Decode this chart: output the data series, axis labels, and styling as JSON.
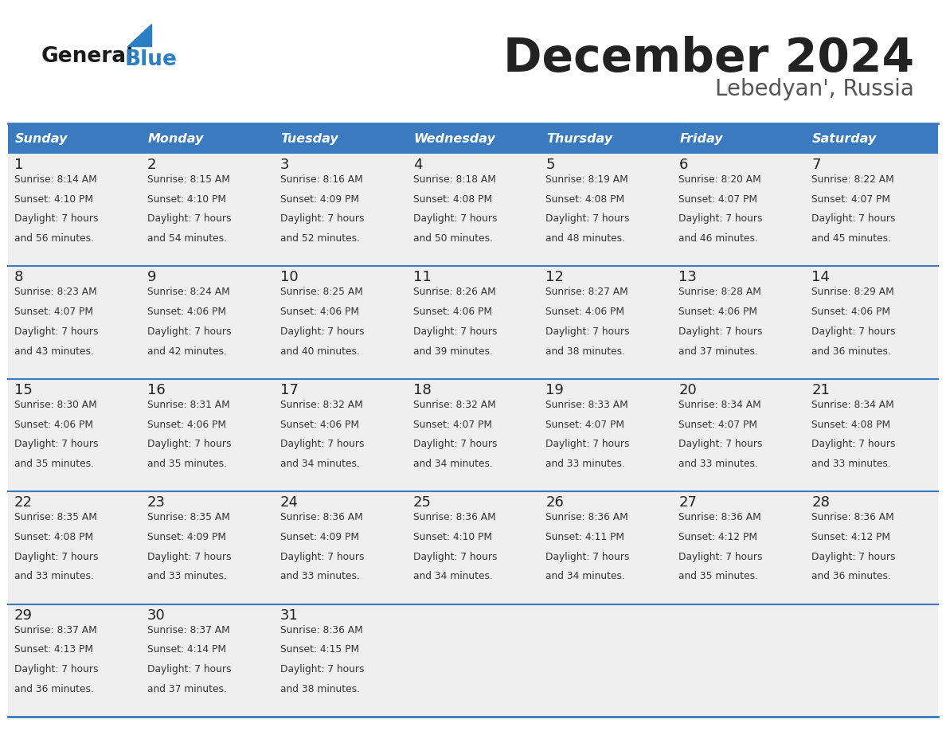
{
  "title": "December 2024",
  "subtitle": "Lebedyan', Russia",
  "header_color": "#3a7abf",
  "header_text_color": "#ffffff",
  "day_names": [
    "Sunday",
    "Monday",
    "Tuesday",
    "Wednesday",
    "Thursday",
    "Friday",
    "Saturday"
  ],
  "cell_bg_color": "#efefef",
  "title_color": "#222222",
  "subtitle_color": "#555555",
  "day_num_color": "#222222",
  "info_color": "#333333",
  "separator_color": "#3a7abf",
  "border_color": "#bbbbbb",
  "logo_color1": "#1a1a1a",
  "logo_color2": "#2b7fc3",
  "calendar": [
    [
      {
        "day": 1,
        "sunrise": "8:14 AM",
        "sunset": "4:10 PM",
        "daylight": "7 hours and 56 minutes."
      },
      {
        "day": 2,
        "sunrise": "8:15 AM",
        "sunset": "4:10 PM",
        "daylight": "7 hours and 54 minutes."
      },
      {
        "day": 3,
        "sunrise": "8:16 AM",
        "sunset": "4:09 PM",
        "daylight": "7 hours and 52 minutes."
      },
      {
        "day": 4,
        "sunrise": "8:18 AM",
        "sunset": "4:08 PM",
        "daylight": "7 hours and 50 minutes."
      },
      {
        "day": 5,
        "sunrise": "8:19 AM",
        "sunset": "4:08 PM",
        "daylight": "7 hours and 48 minutes."
      },
      {
        "day": 6,
        "sunrise": "8:20 AM",
        "sunset": "4:07 PM",
        "daylight": "7 hours and 46 minutes."
      },
      {
        "day": 7,
        "sunrise": "8:22 AM",
        "sunset": "4:07 PM",
        "daylight": "7 hours and 45 minutes."
      }
    ],
    [
      {
        "day": 8,
        "sunrise": "8:23 AM",
        "sunset": "4:07 PM",
        "daylight": "7 hours and 43 minutes."
      },
      {
        "day": 9,
        "sunrise": "8:24 AM",
        "sunset": "4:06 PM",
        "daylight": "7 hours and 42 minutes."
      },
      {
        "day": 10,
        "sunrise": "8:25 AM",
        "sunset": "4:06 PM",
        "daylight": "7 hours and 40 minutes."
      },
      {
        "day": 11,
        "sunrise": "8:26 AM",
        "sunset": "4:06 PM",
        "daylight": "7 hours and 39 minutes."
      },
      {
        "day": 12,
        "sunrise": "8:27 AM",
        "sunset": "4:06 PM",
        "daylight": "7 hours and 38 minutes."
      },
      {
        "day": 13,
        "sunrise": "8:28 AM",
        "sunset": "4:06 PM",
        "daylight": "7 hours and 37 minutes."
      },
      {
        "day": 14,
        "sunrise": "8:29 AM",
        "sunset": "4:06 PM",
        "daylight": "7 hours and 36 minutes."
      }
    ],
    [
      {
        "day": 15,
        "sunrise": "8:30 AM",
        "sunset": "4:06 PM",
        "daylight": "7 hours and 35 minutes."
      },
      {
        "day": 16,
        "sunrise": "8:31 AM",
        "sunset": "4:06 PM",
        "daylight": "7 hours and 35 minutes."
      },
      {
        "day": 17,
        "sunrise": "8:32 AM",
        "sunset": "4:06 PM",
        "daylight": "7 hours and 34 minutes."
      },
      {
        "day": 18,
        "sunrise": "8:32 AM",
        "sunset": "4:07 PM",
        "daylight": "7 hours and 34 minutes."
      },
      {
        "day": 19,
        "sunrise": "8:33 AM",
        "sunset": "4:07 PM",
        "daylight": "7 hours and 33 minutes."
      },
      {
        "day": 20,
        "sunrise": "8:34 AM",
        "sunset": "4:07 PM",
        "daylight": "7 hours and 33 minutes."
      },
      {
        "day": 21,
        "sunrise": "8:34 AM",
        "sunset": "4:08 PM",
        "daylight": "7 hours and 33 minutes."
      }
    ],
    [
      {
        "day": 22,
        "sunrise": "8:35 AM",
        "sunset": "4:08 PM",
        "daylight": "7 hours and 33 minutes."
      },
      {
        "day": 23,
        "sunrise": "8:35 AM",
        "sunset": "4:09 PM",
        "daylight": "7 hours and 33 minutes."
      },
      {
        "day": 24,
        "sunrise": "8:36 AM",
        "sunset": "4:09 PM",
        "daylight": "7 hours and 33 minutes."
      },
      {
        "day": 25,
        "sunrise": "8:36 AM",
        "sunset": "4:10 PM",
        "daylight": "7 hours and 34 minutes."
      },
      {
        "day": 26,
        "sunrise": "8:36 AM",
        "sunset": "4:11 PM",
        "daylight": "7 hours and 34 minutes."
      },
      {
        "day": 27,
        "sunrise": "8:36 AM",
        "sunset": "4:12 PM",
        "daylight": "7 hours and 35 minutes."
      },
      {
        "day": 28,
        "sunrise": "8:36 AM",
        "sunset": "4:12 PM",
        "daylight": "7 hours and 36 minutes."
      }
    ],
    [
      {
        "day": 29,
        "sunrise": "8:37 AM",
        "sunset": "4:13 PM",
        "daylight": "7 hours and 36 minutes."
      },
      {
        "day": 30,
        "sunrise": "8:37 AM",
        "sunset": "4:14 PM",
        "daylight": "7 hours and 37 minutes."
      },
      {
        "day": 31,
        "sunrise": "8:36 AM",
        "sunset": "4:15 PM",
        "daylight": "7 hours and 38 minutes."
      },
      null,
      null,
      null,
      null
    ]
  ]
}
